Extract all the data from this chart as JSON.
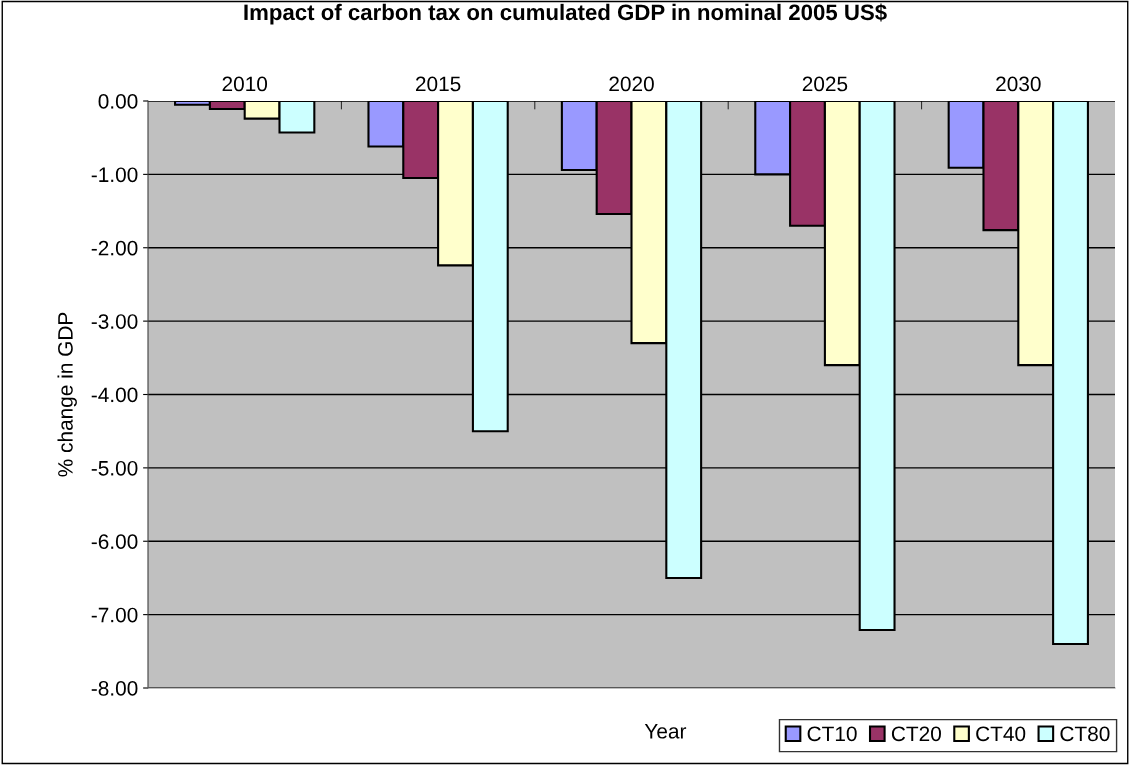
{
  "chart_data": {
    "type": "bar",
    "title": "Impact of carbon tax on cumulated GDP in nominal 2005 US$",
    "xlabel": "Year",
    "ylabel": "% change in GDP",
    "categories": [
      "2010",
      "2015",
      "2020",
      "2025",
      "2030"
    ],
    "series": [
      {
        "name": "CT10",
        "color": "#9999ff",
        "values": [
          -0.05,
          -0.62,
          -0.94,
          -1.0,
          -0.91
        ]
      },
      {
        "name": "CT20",
        "color": "#993366",
        "values": [
          -0.11,
          -1.05,
          -1.54,
          -1.7,
          -1.76
        ]
      },
      {
        "name": "CT40",
        "color": "#ffffcc",
        "values": [
          -0.24,
          -2.24,
          -3.3,
          -3.6,
          -3.6
        ]
      },
      {
        "name": "CT80",
        "color": "#ccffff",
        "values": [
          -0.43,
          -4.5,
          -6.5,
          -7.21,
          -7.4
        ]
      }
    ],
    "ylim": [
      -8,
      0
    ],
    "yticks": [
      {
        "value": 0,
        "label": "0.00"
      },
      {
        "value": -1,
        "label": "-1.00"
      },
      {
        "value": -2,
        "label": "-2.00"
      },
      {
        "value": -3,
        "label": "-3.00"
      },
      {
        "value": -4,
        "label": "-4.00"
      },
      {
        "value": -5,
        "label": "-5.00"
      },
      {
        "value": -6,
        "label": "-6.00"
      },
      {
        "value": -7,
        "label": "-7.00"
      },
      {
        "value": -8,
        "label": "-8.00"
      }
    ],
    "grid": "y",
    "legend": "bottom right"
  }
}
